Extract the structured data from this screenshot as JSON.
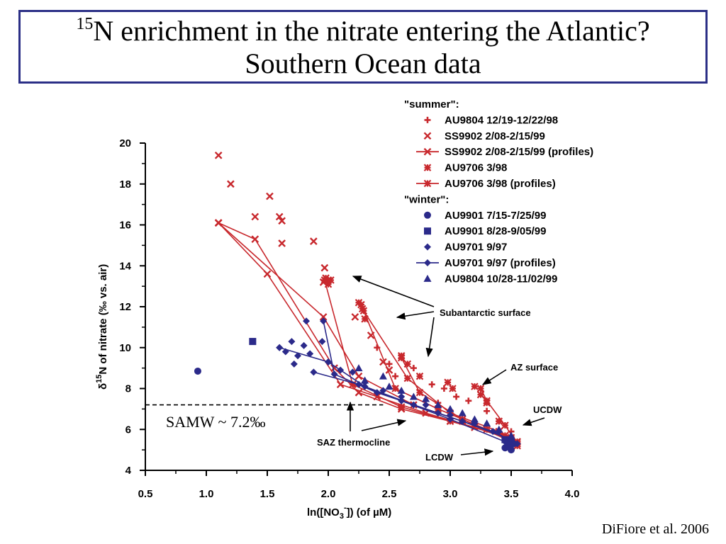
{
  "slide": {
    "title_sup": "15",
    "title_line1": "N enrichment in the nitrate entering the Atlantic?",
    "title_line2": "Southern Ocean data",
    "credit": "DiFiore et al. 2006"
  },
  "colors": {
    "summer": "#c8282d",
    "winter": "#2b2a8a",
    "border": "#2b2f86"
  },
  "chart_data": {
    "type": "scatter",
    "xlabel": "ln([NO3-]) (of µM)",
    "xlabel_parts": {
      "pre": "ln([NO",
      "sub": "3",
      "sup": "-",
      "post": "]) (of µM)"
    },
    "ylabel": "δ15N of nitrate (‰ vs. air)",
    "ylabel_parts": {
      "delta": "δ",
      "sup": "15",
      "post": "N of nitrate (‰ vs. air)"
    },
    "xlim": [
      0.5,
      4.0
    ],
    "ylim": [
      4,
      20
    ],
    "xticks": [
      "0.5",
      "1.0",
      "1.5",
      "2.0",
      "2.5",
      "3.0",
      "3.5",
      "4.0"
    ],
    "yticks": [
      "4",
      "6",
      "8",
      "10",
      "12",
      "14",
      "16",
      "18",
      "20"
    ],
    "grid": false,
    "legend": {
      "position": "top-right",
      "summer_header": "\"summer\":",
      "winter_header": "\"winter\":",
      "entries": [
        {
          "label": "AU9804 12/19-12/22/98",
          "group": "summer",
          "marker": "plus"
        },
        {
          "label": "SS9902  2/08-2/15/99",
          "group": "summer",
          "marker": "x"
        },
        {
          "label": "SS9902  2/08-2/15/99 (profiles)",
          "group": "summer",
          "marker": "x-line"
        },
        {
          "label": "AU9706 3/98",
          "group": "summer",
          "marker": "star"
        },
        {
          "label": "AU9706 3/98 (profiles)",
          "group": "summer",
          "marker": "star-line"
        },
        {
          "label": "AU9901 7/15-7/25/99",
          "group": "winter",
          "marker": "circle"
        },
        {
          "label": "AU9901 8/28-9/05/99",
          "group": "winter",
          "marker": "square"
        },
        {
          "label": "AU9701 9/97",
          "group": "winter",
          "marker": "diamond"
        },
        {
          "label": "AU9701 9/97 (profiles)",
          "group": "winter",
          "marker": "diamond-line"
        },
        {
          "label": "AU9804 10/28-11/02/99",
          "group": "winter",
          "marker": "triangle"
        }
      ]
    },
    "reference_line": {
      "y": 7.2,
      "label": "SAMW ~ 7.2‰"
    },
    "annotations": [
      "Subantarctic surface",
      "AZ surface",
      "UCDW",
      "SAZ thermocline",
      "LCDW"
    ],
    "series": [
      {
        "name": "SS9902  2/08-2/15/99",
        "marker": "x",
        "color": "summer",
        "points": [
          [
            1.1,
            19.4
          ],
          [
            1.2,
            18.0
          ],
          [
            1.52,
            17.4
          ],
          [
            1.4,
            16.4
          ],
          [
            1.6,
            16.4
          ],
          [
            1.62,
            16.2
          ],
          [
            1.62,
            15.1
          ],
          [
            1.88,
            15.2
          ],
          [
            1.97,
            13.9
          ],
          [
            1.96,
            13.2
          ],
          [
            2.0,
            13.3
          ],
          [
            2.22,
            11.5
          ],
          [
            2.35,
            10.6
          ],
          [
            2.45,
            9.3
          ],
          [
            2.5,
            8.9
          ]
        ]
      },
      {
        "name": "SS9902  2/08-2/15/99 (profiles)",
        "marker": "x-line",
        "color": "summer",
        "profiles": [
          [
            [
              1.1,
              16.1
            ],
            [
              1.4,
              15.3
            ],
            [
              2.05,
              9.0
            ],
            [
              2.25,
              7.8
            ],
            [
              2.6,
              7.0
            ],
            [
              3.0,
              6.4
            ],
            [
              3.5,
              5.6
            ]
          ],
          [
            [
              1.1,
              16.1
            ],
            [
              1.5,
              13.6
            ],
            [
              2.1,
              8.2
            ],
            [
              2.4,
              7.6
            ],
            [
              2.8,
              6.8
            ],
            [
              3.2,
              6.1
            ],
            [
              3.55,
              5.4
            ]
          ],
          [
            [
              1.1,
              16.1
            ],
            [
              1.96,
              11.5
            ],
            [
              2.25,
              8.6
            ],
            [
              2.7,
              7.2
            ],
            [
              3.1,
              6.4
            ],
            [
              3.5,
              5.5
            ]
          ]
        ]
      },
      {
        "name": "AU9706 3/98",
        "marker": "star",
        "color": "summer",
        "points": [
          [
            1.98,
            13.4
          ],
          [
            2.0,
            13.1
          ],
          [
            2.02,
            13.3
          ],
          [
            2.25,
            12.2
          ],
          [
            2.28,
            11.9
          ],
          [
            2.3,
            11.4
          ],
          [
            2.6,
            9.6
          ],
          [
            2.65,
            9.2
          ],
          [
            2.75,
            8.6
          ],
          [
            2.98,
            8.3
          ],
          [
            3.02,
            8.0
          ],
          [
            3.2,
            8.1
          ],
          [
            3.25,
            7.7
          ],
          [
            3.3,
            7.3
          ],
          [
            3.4,
            6.4
          ]
        ]
      },
      {
        "name": "AU9706 3/98 (profiles)",
        "marker": "star-line",
        "color": "summer",
        "profiles": [
          [
            [
              1.97,
              13.3
            ],
            [
              2.2,
              8.2
            ],
            [
              2.6,
              7.1
            ],
            [
              3.0,
              6.4
            ],
            [
              3.45,
              5.7
            ]
          ],
          [
            [
              2.27,
              12.1
            ],
            [
              2.55,
              8.0
            ],
            [
              2.9,
              7.0
            ],
            [
              3.3,
              6.0
            ],
            [
              3.55,
              5.4
            ]
          ],
          [
            [
              2.29,
              11.8
            ],
            [
              2.65,
              8.5
            ],
            [
              3.0,
              6.8
            ],
            [
              3.4,
              5.9
            ],
            [
              3.55,
              5.2
            ]
          ],
          [
            [
              2.6,
              9.5
            ],
            [
              2.75,
              7.8
            ],
            [
              3.1,
              6.5
            ],
            [
              3.5,
              5.4
            ]
          ],
          [
            [
              3.25,
              8.0
            ],
            [
              3.3,
              7.4
            ],
            [
              3.45,
              6.2
            ],
            [
              3.55,
              5.3
            ]
          ]
        ]
      },
      {
        "name": "AU9804 12/19-12/22/98",
        "marker": "plus",
        "color": "summer",
        "points": [
          [
            2.4,
            10.0
          ],
          [
            2.5,
            9.2
          ],
          [
            2.7,
            9.0
          ],
          [
            2.85,
            8.2
          ],
          [
            2.95,
            8.0
          ],
          [
            3.05,
            7.6
          ],
          [
            3.15,
            7.4
          ],
          [
            3.3,
            6.9
          ],
          [
            3.4,
            6.4
          ],
          [
            3.5,
            5.9
          ],
          [
            2.55,
            8.6
          ],
          [
            2.9,
            7.3
          ]
        ]
      },
      {
        "name": "AU9901 7/15-7/25/99",
        "marker": "circle",
        "color": "winter",
        "points": [
          [
            0.93,
            8.85
          ],
          [
            3.45,
            5.1
          ],
          [
            3.48,
            5.2
          ],
          [
            3.5,
            5.0
          ],
          [
            3.52,
            5.3
          ]
        ]
      },
      {
        "name": "AU9901 8/28-9/05/99",
        "marker": "square",
        "color": "winter",
        "points": [
          [
            1.38,
            10.3
          ],
          [
            3.45,
            5.5
          ],
          [
            3.5,
            5.4
          ],
          [
            3.48,
            5.2
          ]
        ]
      },
      {
        "name": "AU9701 9/97",
        "marker": "diamond",
        "color": "winter",
        "points": [
          [
            1.6,
            10.0
          ],
          [
            1.65,
            9.8
          ],
          [
            1.7,
            10.3
          ],
          [
            1.72,
            9.2
          ],
          [
            1.75,
            9.6
          ],
          [
            1.8,
            10.1
          ],
          [
            1.85,
            9.7
          ],
          [
            1.82,
            11.3
          ],
          [
            1.95,
            10.3
          ],
          [
            2.0,
            9.3
          ],
          [
            2.1,
            8.9
          ],
          [
            2.2,
            8.8
          ],
          [
            2.3,
            8.3
          ],
          [
            2.45,
            7.9
          ],
          [
            2.6,
            7.6
          ],
          [
            2.8,
            7.2
          ],
          [
            3.0,
            6.7
          ],
          [
            3.2,
            6.3
          ],
          [
            3.4,
            5.9
          ]
        ]
      },
      {
        "name": "AU9701 9/97 (profiles)",
        "marker": "diamond-line",
        "color": "winter",
        "profiles": [
          [
            [
              1.6,
              10.0
            ],
            [
              2.0,
              9.3
            ],
            [
              2.3,
              8.1
            ],
            [
              2.7,
              7.2
            ],
            [
              3.1,
              6.4
            ],
            [
              3.5,
              5.5
            ]
          ],
          [
            [
              1.88,
              8.8
            ],
            [
              2.25,
              8.2
            ],
            [
              2.6,
              7.4
            ],
            [
              3.0,
              6.5
            ],
            [
              3.45,
              5.4
            ]
          ],
          [
            [
              1.96,
              11.3
            ],
            [
              2.05,
              8.7
            ],
            [
              2.4,
              7.8
            ],
            [
              2.9,
              6.8
            ],
            [
              3.35,
              5.9
            ],
            [
              3.55,
              5.3
            ]
          ]
        ]
      },
      {
        "name": "AU9804 10/28-11/02/99",
        "marker": "triangle",
        "color": "winter",
        "points": [
          [
            2.25,
            9.0
          ],
          [
            2.3,
            8.4
          ],
          [
            2.45,
            8.6
          ],
          [
            2.5,
            8.1
          ],
          [
            2.6,
            7.9
          ],
          [
            2.7,
            7.6
          ],
          [
            2.8,
            7.5
          ],
          [
            2.9,
            7.2
          ],
          [
            3.0,
            7.0
          ],
          [
            3.1,
            6.8
          ],
          [
            3.2,
            6.5
          ],
          [
            3.3,
            6.3
          ],
          [
            3.4,
            6.0
          ],
          [
            3.5,
            5.7
          ]
        ]
      }
    ]
  }
}
